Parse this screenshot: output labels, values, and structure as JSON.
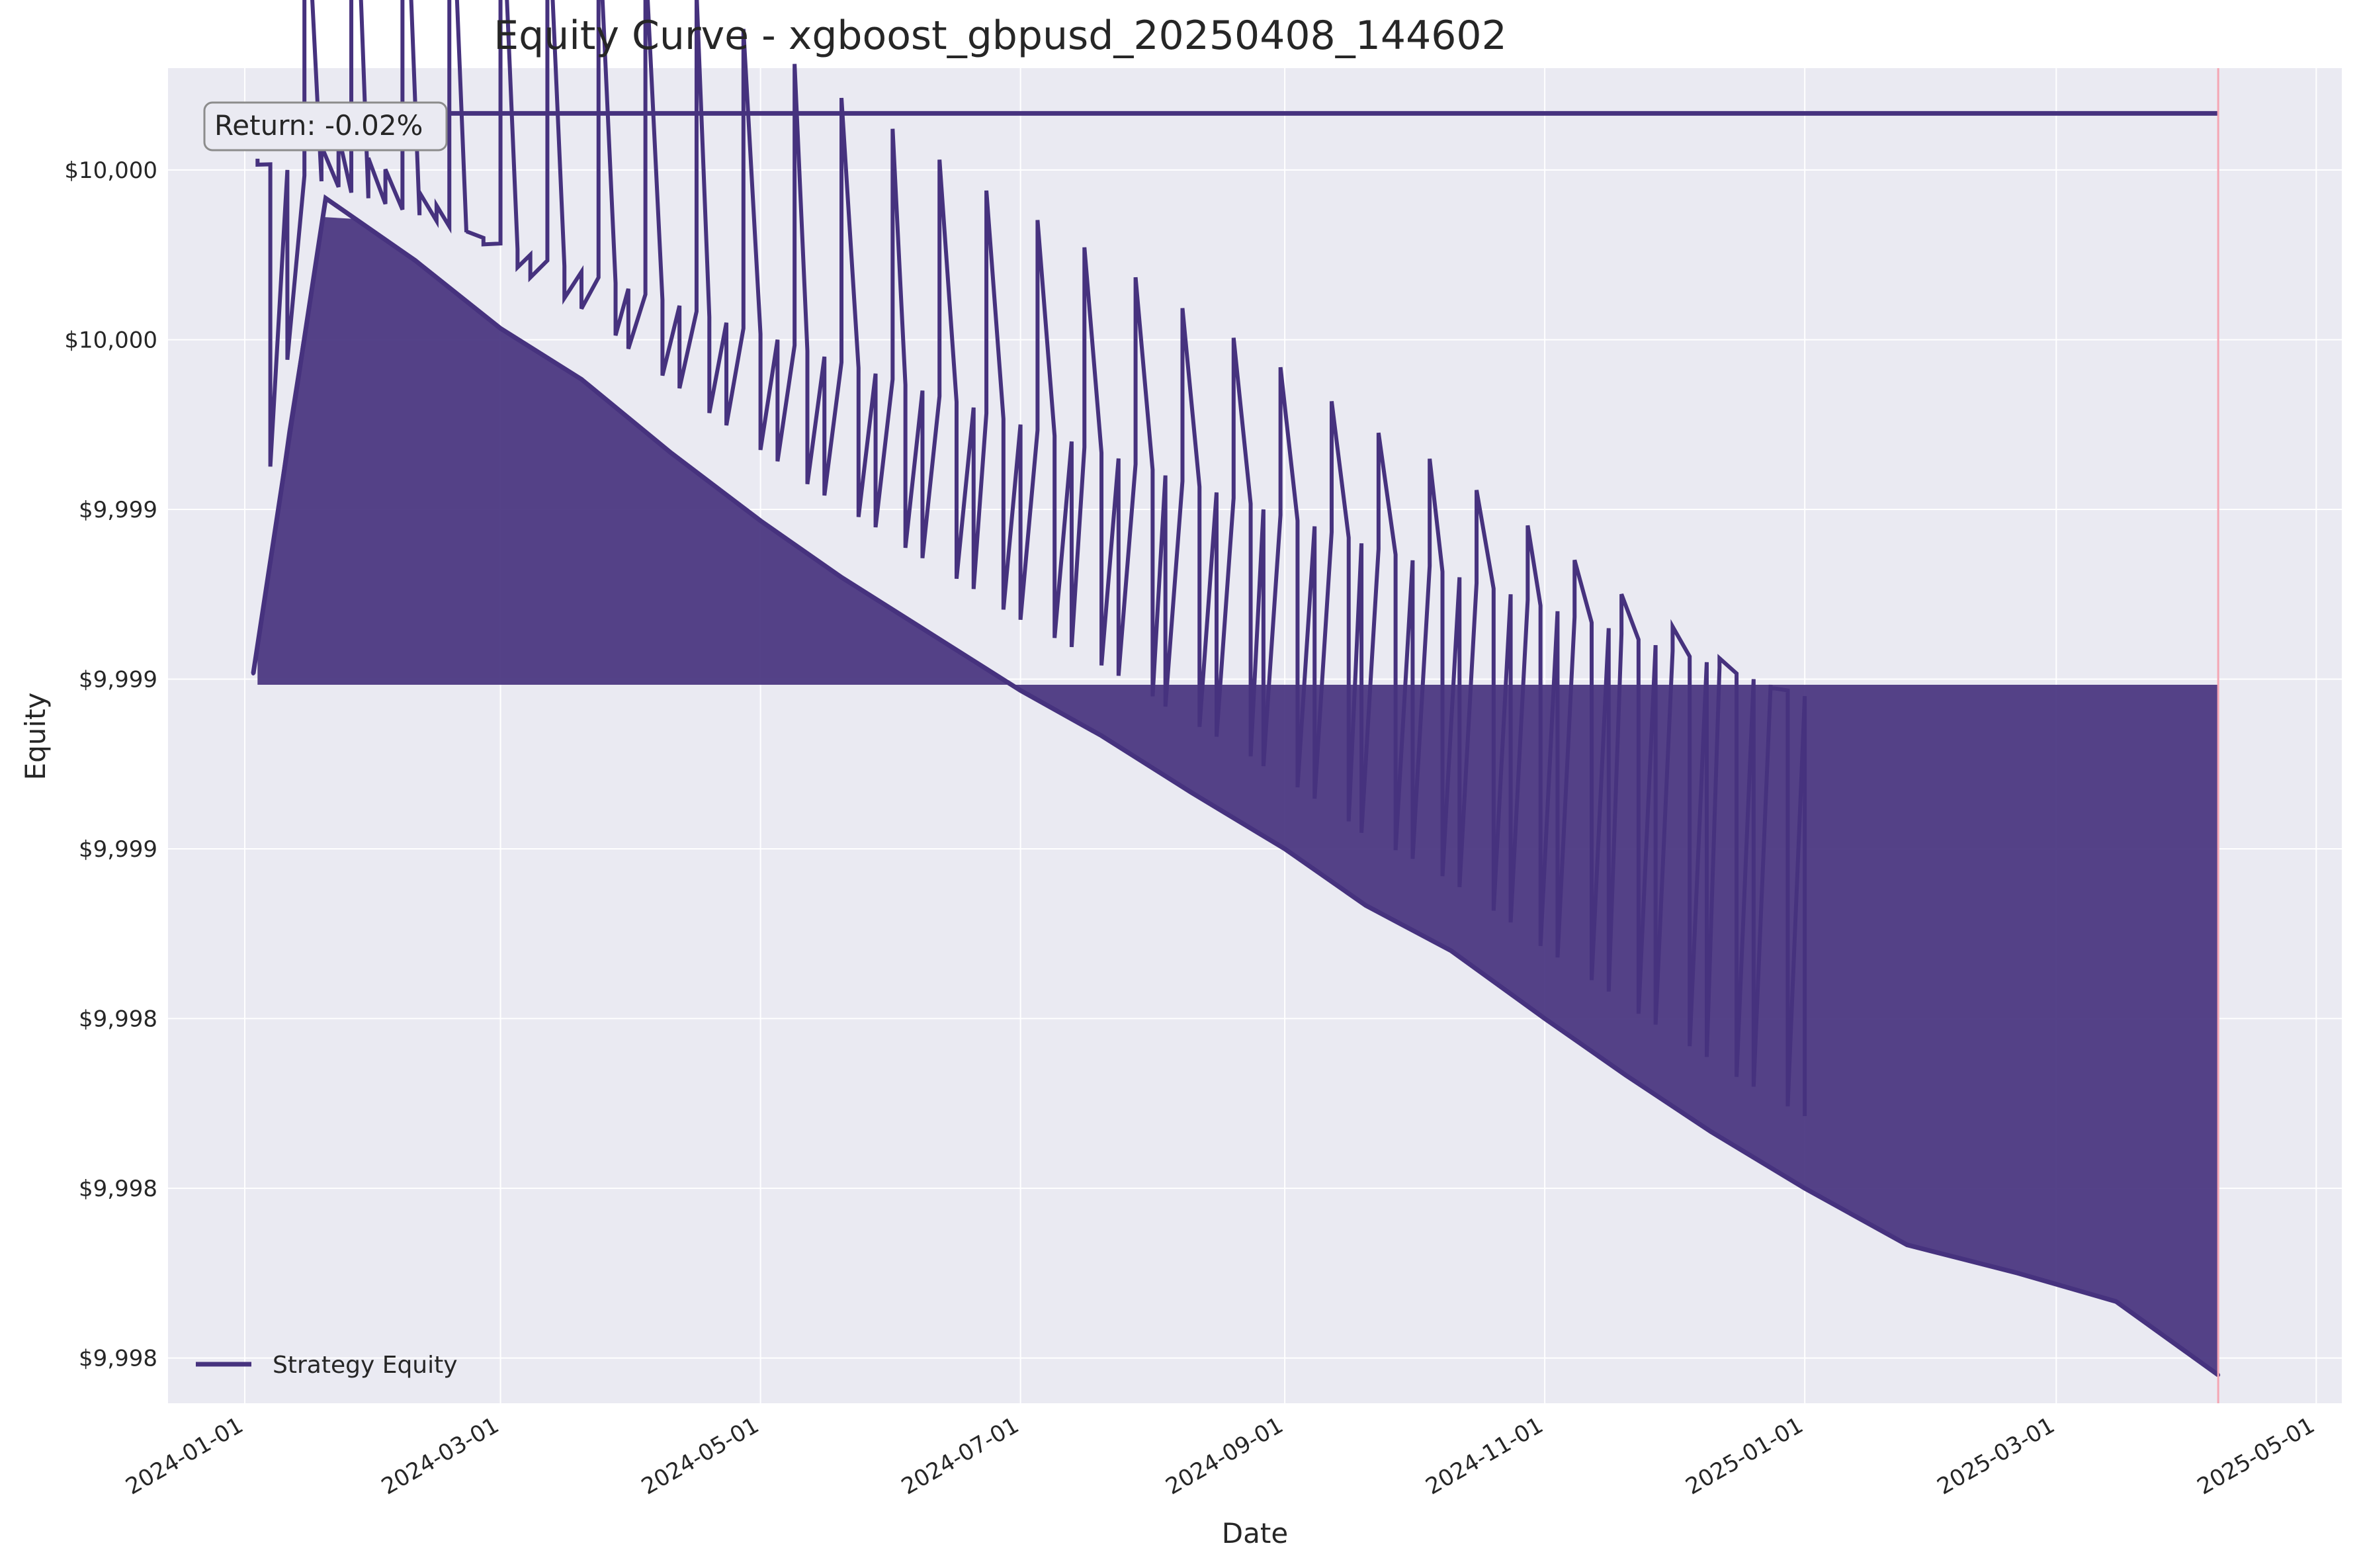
{
  "chart_data": {
    "type": "line",
    "title": "Equity Curve - xgboost_gbpusd_20250408_144602",
    "xlabel": "Date",
    "ylabel": "Equity",
    "x_range": [
      "2023-12-14",
      "2025-05-07"
    ],
    "y_range": [
      9997.72,
      10000.08
    ],
    "x_ticks": [
      "2024-01-01",
      "2024-03-01",
      "2024-05-01",
      "2024-07-01",
      "2024-09-01",
      "2024-11-01",
      "2025-01-01",
      "2025-03-01",
      "2025-05-01"
    ],
    "y_ticks": [
      {
        "value": 9997.8,
        "label": "$9,998"
      },
      {
        "value": 9998.1,
        "label": "$9,998"
      },
      {
        "value": 9998.4,
        "label": "$9,998"
      },
      {
        "value": 9998.7,
        "label": "$9,999"
      },
      {
        "value": 9999.0,
        "label": "$9,999"
      },
      {
        "value": 9999.3,
        "label": "$9,999"
      },
      {
        "value": 9999.6,
        "label": "$10,000"
      },
      {
        "value": 9999.9,
        "label": "$10,000"
      },
      {
        "value": 10000.2,
        "label": "$10,000"
      }
    ],
    "grid": true,
    "legend_position": "lower-left",
    "annotation": "Return: -0.02%",
    "vline_date": "2025-04-08",
    "colors": {
      "series": "#46327e",
      "vline": "#f4a6b4",
      "background": "#eaeaf2",
      "grid": "#ffffff"
    },
    "series": [
      {
        "name": "Strategy Equity",
        "x": [
          "2024-01-03",
          "2024-01-20",
          "2024-02-10",
          "2024-03-01",
          "2024-03-20",
          "2024-04-10",
          "2024-05-01",
          "2024-05-20",
          "2024-06-10",
          "2024-07-01",
          "2024-07-20",
          "2024-08-10",
          "2024-09-01",
          "2024-09-20",
          "2024-10-10",
          "2024-11-01",
          "2024-11-20",
          "2024-12-10",
          "2025-01-01",
          "2025-01-25",
          "2025-02-20",
          "2025-03-15",
          "2025-04-08"
        ],
        "y": [
          9999.01,
          9999.85,
          9999.74,
          9999.62,
          9999.53,
          9999.4,
          9999.28,
          9999.18,
          9999.08,
          9998.98,
          9998.9,
          9998.8,
          9998.7,
          9998.6,
          9998.52,
          9998.4,
          9998.3,
          9998.2,
          9998.1,
          9998.0,
          9997.95,
          9997.9,
          9997.77
        ]
      }
    ]
  }
}
